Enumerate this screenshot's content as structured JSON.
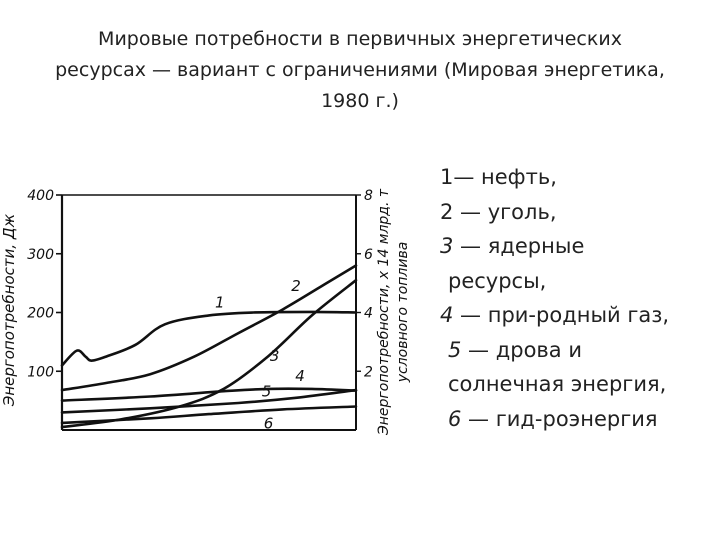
{
  "title_lines": [
    "Мировые  потребности   в   первичных энергетических",
    "ресурсах — вариант с ограничениями (Мировая энергетика,",
    "1980 г.)"
  ],
  "legend_lines": [
    {
      "num": "",
      "text": "1— нефть,"
    },
    {
      "num": "",
      "text": "2 — уголь,"
    },
    {
      "num": "3",
      "text": " — ядерные"
    },
    {
      "num": "",
      "text": "ресурсы,"
    },
    {
      "num": "4",
      "text": " — при-родный газ,"
    },
    {
      "num": "5",
      "text": " — дрова и"
    },
    {
      "num": "",
      "text": "солнечная энергия,"
    },
    {
      "num": "6",
      "text": " — гид-роэнергия"
    }
  ],
  "chart_data": {
    "type": "line",
    "ylabel_left": "Энергопотребности, Дж",
    "ylabel_right": [
      "Энергопотребности, x 14 млрд. т",
      "условного топлива"
    ],
    "ylim": [
      0,
      400
    ],
    "yticks_left": [
      "400",
      "300",
      "200",
      "100"
    ],
    "yticks_right": [
      "8",
      "6",
      "4",
      "2"
    ],
    "y2lim": [
      0,
      8
    ],
    "grid": false,
    "series": [
      {
        "name": "1",
        "x": [
          0,
          0.05,
          0.08,
          0.1,
          0.15,
          0.25,
          0.35,
          0.5,
          0.65,
          0.85,
          1.0
        ],
        "y": [
          110,
          135,
          125,
          118,
          125,
          145,
          180,
          195,
          200,
          201,
          200
        ]
      },
      {
        "name": "2",
        "x": [
          0,
          0.15,
          0.3,
          0.45,
          0.6,
          0.75,
          0.9,
          1.0
        ],
        "y": [
          68,
          80,
          95,
          125,
          165,
          205,
          250,
          280
        ]
      },
      {
        "name": "3",
        "x": [
          0,
          0.2,
          0.4,
          0.55,
          0.7,
          0.85,
          1.0
        ],
        "y": [
          5,
          18,
          40,
          70,
          125,
          195,
          255
        ]
      },
      {
        "name": "4",
        "x": [
          0,
          0.3,
          0.55,
          0.7,
          0.85,
          1.0
        ],
        "y": [
          50,
          57,
          66,
          70,
          70,
          67
        ]
      },
      {
        "name": "5",
        "x": [
          0,
          0.3,
          0.6,
          0.8,
          1.0
        ],
        "y": [
          30,
          37,
          46,
          55,
          68
        ]
      },
      {
        "name": "6",
        "x": [
          0,
          0.3,
          0.5,
          0.75,
          1.0
        ],
        "y": [
          12,
          20,
          27,
          35,
          40
        ]
      }
    ],
    "annotations": [
      "1",
      "2",
      "3",
      "4",
      "5",
      "6"
    ]
  }
}
